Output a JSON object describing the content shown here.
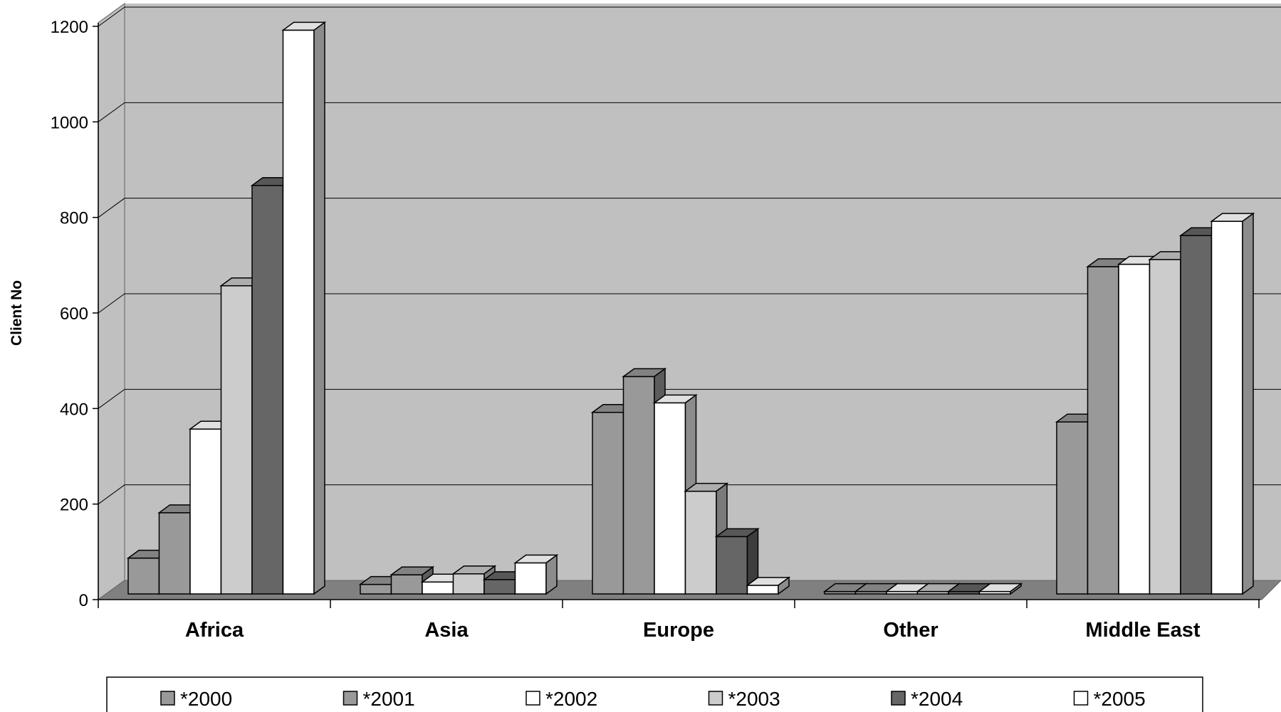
{
  "chart_data": {
    "type": "bar",
    "title": "",
    "xlabel": "",
    "ylabel": "Client No",
    "ylim": [
      0,
      1200
    ],
    "yticks": [
      "0",
      "200",
      "400",
      "600",
      "800",
      "1000",
      "1200"
    ],
    "grid": true,
    "legend_position": "bottom",
    "categories": [
      "Africa",
      "Asia",
      "Europe",
      "Other",
      "Middle East"
    ],
    "series": [
      {
        "name": "*2000",
        "color": "#999999",
        "values": [
          75,
          20,
          380,
          5,
          360
        ]
      },
      {
        "name": "*2001",
        "color": "#999999",
        "values": [
          170,
          40,
          455,
          5,
          685
        ]
      },
      {
        "name": "*2002",
        "color": "#ffffff",
        "values": [
          345,
          25,
          400,
          5,
          690
        ]
      },
      {
        "name": "*2003",
        "color": "#cccccc",
        "values": [
          645,
          42,
          215,
          5,
          700
        ]
      },
      {
        "name": "*2004",
        "color": "#666666",
        "values": [
          855,
          30,
          120,
          5,
          750
        ]
      },
      {
        "name": "*2005",
        "color": "#ffffff",
        "values": [
          1180,
          65,
          18,
          5,
          780
        ]
      }
    ],
    "colors": {
      "plot_back": "#c0c0c0",
      "floor": "#808080",
      "gridline": "#000000"
    }
  }
}
